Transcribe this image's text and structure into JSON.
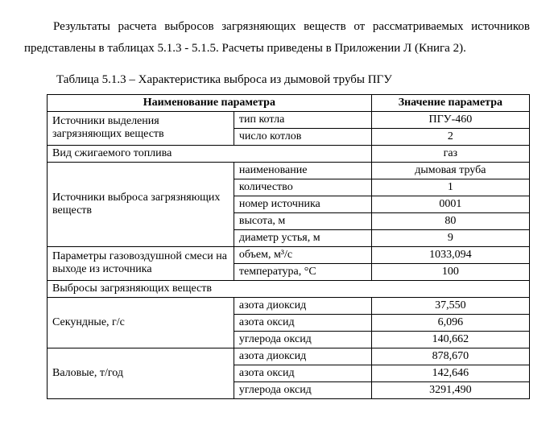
{
  "paragraph": "Результаты расчета выбросов загрязняющих веществ от рассматривае­мых источников представлены в таблицах 5.1.3 - 5.1.5. Расчеты приведены в Приложении Л (Книга 2).",
  "table_caption": "Таблица 5.1.3 – Характеристика выброса из дымовой трубы ПГУ",
  "headers": {
    "param_name": "Наименование параметра",
    "param_value": "Значение параметра"
  },
  "rows": {
    "src_emit_label": "Источники выделения загрязняющих веществ",
    "boiler_type_label": "тип котла",
    "boiler_type_value": "ПГУ-460",
    "boiler_count_label": "число котлов",
    "boiler_count_value": "2",
    "fuel_type_label": "Вид сжигаемого топлива",
    "fuel_type_value": "газ",
    "src_out_label": "Источники выброса загрязняющих веществ",
    "name_label": "наименование",
    "name_value": "дымовая труба",
    "qty_label": "количество",
    "qty_value": "1",
    "src_num_label": "номер источника",
    "src_num_value": "0001",
    "height_label": "высота, м",
    "height_value": "80",
    "diameter_label": "диаметр устья, м",
    "diameter_value": "9",
    "gasair_label": "Параметры газовоздушной смеси на выходе из источника",
    "volume_label": "объем, м³/с",
    "volume_value": "1033,094",
    "temp_label": "температура, °С",
    "temp_value": "100",
    "emissions_label": "Выбросы загрязняющих веществ",
    "sec_label": "Секундные, г/с",
    "no2_label": "азота диоксид",
    "sec_no2": "37,550",
    "no_label": "азота оксид",
    "sec_no": "6,096",
    "co_label": "углерода оксид",
    "sec_co": "140,662",
    "gross_label": "Валовые, т/год",
    "gross_no2": "878,670",
    "gross_no": "142,646",
    "gross_co": "3291,490"
  }
}
